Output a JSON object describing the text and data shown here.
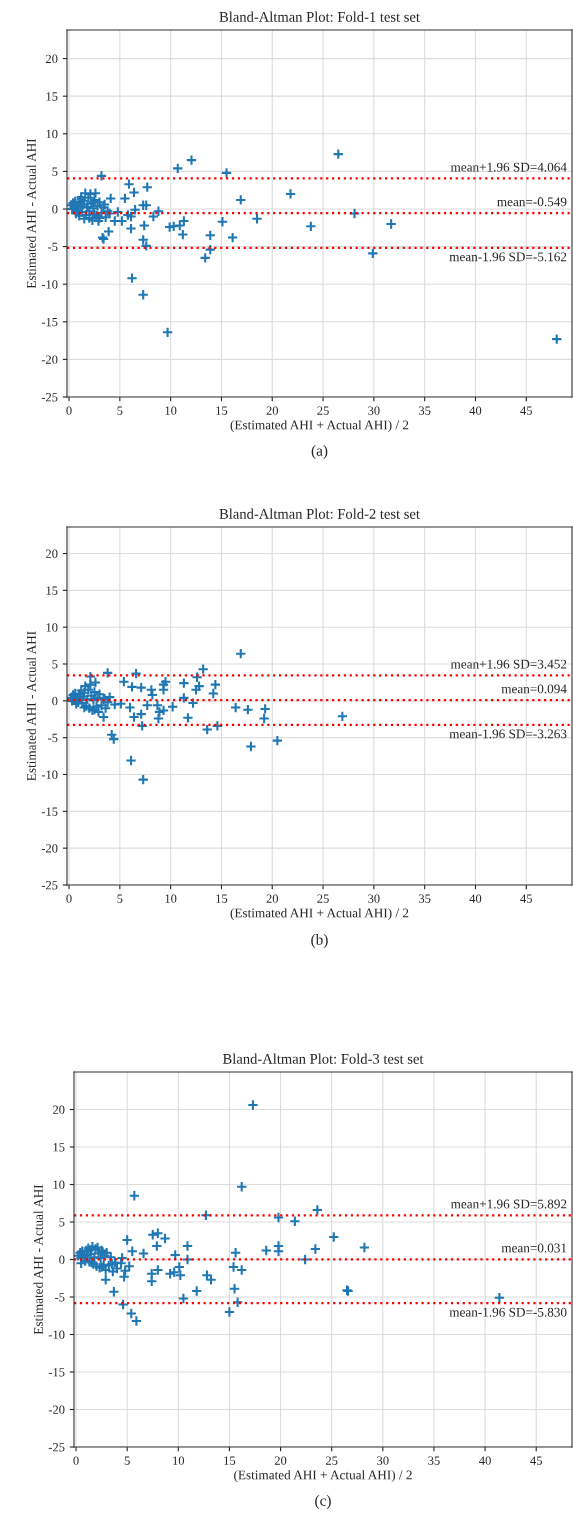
{
  "chart_data": [
    {
      "type": "scatter",
      "title": "Bland-Altman Plot: Fold-1 test set",
      "xlabel": "(Estimated AHI + Actual AHI) / 2",
      "ylabel": "Estimated AHI - Actual AHI",
      "marker": "cross",
      "grid": true,
      "xlim": [
        -0.2,
        49.5
      ],
      "ylim": [
        -25,
        23.8
      ],
      "xticks": [
        0,
        5,
        10,
        15,
        20,
        25,
        30,
        35,
        40,
        45
      ],
      "yticks": [
        -25,
        -20,
        -15,
        -10,
        -5,
        0,
        5,
        10,
        15,
        20
      ],
      "series": [
        {
          "color": "#1f77b4",
          "x": [
            0.2,
            0.4,
            0.5,
            0.6,
            0.8,
            0.9,
            1.0,
            1.1,
            1.2,
            1.3,
            1.4,
            1.5,
            1.6,
            1.7,
            1.8,
            1.9,
            2.0,
            2.1,
            2.2,
            2.3,
            2.4,
            2.5,
            2.6,
            2.7,
            2.8,
            2.9,
            3.0,
            3.2,
            3.4,
            3.6,
            3.8,
            4.0,
            0.3,
            0.7,
            1.0,
            1.5,
            2.0,
            2.5,
            3.0,
            3.5,
            1.2,
            1.8,
            2.4,
            3.19,
            5.9,
            6.4,
            7.7,
            5.5,
            4.1,
            10.7,
            12.05,
            15.5,
            16.9,
            21.8,
            26.5,
            23.8,
            28.1,
            31.7,
            29.9,
            48.0,
            18.5,
            15.1,
            16.1,
            13.9,
            13.9,
            13.4,
            11.3,
            11.2,
            9.9,
            10.3,
            10.9,
            9.7,
            6.2,
            7.3,
            7.3,
            7.6,
            3.3,
            3.4,
            3.9,
            6.1,
            7.4,
            8.3,
            7.6,
            7.3,
            6.5,
            4.5,
            5.2,
            6.1,
            4.8,
            5.8,
            8.8
          ],
          "values": [
            0.5,
            0.8,
            0.2,
            1.0,
            0.4,
            -0.2,
            0.9,
            0.3,
            1.3,
            -0.4,
            0.6,
            1.1,
            2.1,
            -0.8,
            0.2,
            1.5,
            -1.2,
            2.0,
            0.7,
            -1.5,
            0.1,
            1.2,
            2.1,
            -0.9,
            0.4,
            -1.6,
            0.9,
            -0.5,
            0.2,
            -1.1,
            -0.3,
            -0.6,
            0.0,
            -0.6,
            -0.9,
            -1.3,
            -0.3,
            -0.7,
            -1.2,
            0.6,
            1.6,
            0.3,
            0.9,
            4.4,
            3.3,
            2.2,
            2.9,
            1.4,
            1.4,
            5.4,
            6.5,
            4.8,
            1.2,
            2.0,
            7.3,
            -2.3,
            -0.6,
            -2.0,
            -5.9,
            -17.3,
            -1.3,
            -1.7,
            -3.8,
            -3.5,
            -5.4,
            -6.5,
            -1.6,
            -3.4,
            -2.4,
            -2.3,
            -2.2,
            -16.4,
            -9.2,
            -11.4,
            -4.1,
            -4.9,
            -3.8,
            -4.0,
            -3.0,
            -2.6,
            -2.2,
            -1.0,
            0.5,
            0.5,
            -0.1,
            -1.6,
            -1.6,
            -1.0,
            -0.4,
            -0.8,
            -0.3
          ]
        }
      ],
      "ref_lines": [
        {
          "axis": "y",
          "value": 4.064,
          "label": "mean+1.96 SD=4.064",
          "color": "#ff0000",
          "line_style": "dotted"
        },
        {
          "axis": "y",
          "value": -0.549,
          "label": "mean=-0.549",
          "color": "#ff0000",
          "line_style": "dotted"
        },
        {
          "axis": "y",
          "value": -5.162,
          "label": "mean-1.96 SD=-5.162",
          "color": "#ff0000",
          "line_style": "dotted"
        }
      ],
      "annotations": [
        "(a)"
      ]
    },
    {
      "type": "scatter",
      "title": "Bland-Altman Plot: Fold-2 test set",
      "xlabel": "(Estimated AHI + Actual AHI) / 2",
      "ylabel": "Estimated AHI - Actual AHI",
      "marker": "cross",
      "grid": true,
      "xlim": [
        -0.2,
        49.5
      ],
      "ylim": [
        -25,
        23.6
      ],
      "xticks": [
        0,
        5,
        10,
        15,
        20,
        25,
        30,
        35,
        40,
        45
      ],
      "yticks": [
        -25,
        -20,
        -15,
        -10,
        -5,
        0,
        5,
        10,
        15,
        20
      ],
      "series": [
        {
          "color": "#1f77b4",
          "x": [
            0.2,
            0.4,
            0.5,
            0.6,
            0.8,
            0.9,
            1.0,
            1.1,
            1.2,
            1.3,
            1.4,
            1.5,
            1.6,
            1.7,
            1.8,
            1.9,
            2.0,
            2.1,
            2.2,
            2.3,
            2.4,
            2.5,
            2.6,
            2.7,
            2.8,
            2.9,
            3.0,
            3.2,
            3.4,
            3.6,
            3.8,
            4.0,
            0.3,
            0.7,
            1.5,
            2.5,
            3.5,
            4.5,
            16.9,
            13.2,
            12.6,
            12.8,
            12.5,
            14.4,
            14.2,
            11.3,
            11.3,
            12.2,
            11.7,
            10.2,
            9.5,
            9.3,
            9.3,
            8.1,
            8.2,
            7.7,
            8.7,
            8.9,
            8.8,
            9.3,
            7.1,
            6.6,
            5.4,
            6.2,
            7.1,
            7.2,
            16.4,
            17.6,
            19.3,
            19.2,
            17.9,
            20.5,
            26.9,
            13.6,
            14.6,
            4.2,
            4.4,
            6.1,
            7.3,
            3.8,
            2.1,
            5.1,
            6.0,
            6.4,
            3.4
          ],
          "values": [
            0.4,
            0.8,
            0.1,
            1.0,
            0.3,
            -0.2,
            0.9,
            0.5,
            1.4,
            -0.3,
            0.6,
            1.1,
            2.0,
            -0.7,
            0.2,
            1.5,
            -1.0,
            2.2,
            0.7,
            -1.3,
            0.1,
            1.2,
            2.5,
            -0.8,
            0.4,
            -1.5,
            0.9,
            -0.6,
            0.2,
            -1.0,
            -0.2,
            0.5,
            0.0,
            -0.4,
            -0.9,
            -1.2,
            0.3,
            -0.5,
            6.4,
            4.3,
            3.2,
            2.0,
            1.5,
            2.2,
            1.0,
            2.4,
            0.4,
            -0.3,
            -2.3,
            -0.8,
            2.6,
            1.5,
            2.2,
            1.5,
            0.8,
            -0.6,
            -0.6,
            -1.5,
            -2.4,
            -1.3,
            1.8,
            3.7,
            2.6,
            1.9,
            -1.8,
            -3.4,
            -0.9,
            -1.2,
            -1.1,
            -2.4,
            -6.2,
            -5.4,
            -2.1,
            -3.9,
            -3.4,
            -4.6,
            -5.2,
            -8.1,
            -10.7,
            3.8,
            3.3,
            -0.4,
            -0.9,
            -2.2,
            -2.2
          ]
        }
      ],
      "ref_lines": [
        {
          "axis": "y",
          "value": 3.452,
          "label": "mean+1.96 SD=3.452",
          "color": "#ff0000",
          "line_style": "dotted"
        },
        {
          "axis": "y",
          "value": 0.094,
          "label": "mean=0.094",
          "color": "#ff0000",
          "line_style": "dotted"
        },
        {
          "axis": "y",
          "value": -3.263,
          "label": "mean-1.96 SD=-3.263",
          "color": "#ff0000",
          "line_style": "dotted"
        }
      ],
      "annotations": [
        "(b)"
      ]
    },
    {
      "type": "scatter",
      "title": "Bland-Altman Plot: Fold-3 test set",
      "xlabel": "(Estimated AHI + Actual AHI) / 2",
      "ylabel": "Estimated AHI - Actual AHI",
      "marker": "cross",
      "grid": true,
      "xlim": [
        -0.2,
        48.5
      ],
      "ylim": [
        -25,
        25
      ],
      "xticks": [
        0,
        5,
        10,
        15,
        20,
        25,
        30,
        35,
        40,
        45
      ],
      "yticks": [
        -25,
        -20,
        -15,
        -10,
        -5,
        0,
        5,
        10,
        15,
        20
      ],
      "series": [
        {
          "color": "#1f77b4",
          "x": [
            0.2,
            0.4,
            0.5,
            0.6,
            0.8,
            0.9,
            1.0,
            1.1,
            1.2,
            1.3,
            1.4,
            1.5,
            1.6,
            1.7,
            1.8,
            1.9,
            2.0,
            2.1,
            2.2,
            2.3,
            2.4,
            2.5,
            2.6,
            2.7,
            2.8,
            2.9,
            3.0,
            3.2,
            3.4,
            3.6,
            3.8,
            4.0,
            4.4,
            4.8,
            5.2,
            0.5,
            1.5,
            2.5,
            3.5,
            4.5,
            17.3,
            16.2,
            5.7,
            12.7,
            19.8,
            21.4,
            23.6,
            25.2,
            23.4,
            22.4,
            19.8,
            19.8,
            18.6,
            15.6,
            15.4,
            16.2,
            15.5,
            15.8,
            15.0,
            12.8,
            13.2,
            11.8,
            10.5,
            10.9,
            10.9,
            10.1,
            9.7,
            9.2,
            9.6,
            10.2,
            8.7,
            8.0,
            7.5,
            7.9,
            8.0,
            7.4,
            7.4,
            6.6,
            5.0,
            5.5,
            4.6,
            5.4,
            5.9,
            3.7,
            2.9,
            4.7,
            28.2,
            26.5,
            26.6,
            41.4
          ],
          "values": [
            0.5,
            0.9,
            0.2,
            1.1,
            0.4,
            -0.2,
            1.2,
            0.6,
            1.5,
            -0.3,
            0.7,
            1.3,
            1.7,
            -0.6,
            0.3,
            1.4,
            -0.9,
            1.6,
            0.8,
            -1.1,
            0.2,
            1.2,
            1.0,
            -0.7,
            0.5,
            -1.4,
            0.9,
            -0.8,
            0.3,
            -1.6,
            -0.4,
            -1.2,
            -0.5,
            -1.5,
            -0.9,
            -0.5,
            -0.4,
            -1.0,
            -0.6,
            0.2,
            20.6,
            9.7,
            8.5,
            5.9,
            5.6,
            5.1,
            6.6,
            3.0,
            1.4,
            0.0,
            1.8,
            1.1,
            1.2,
            0.9,
            -1.0,
            -1.4,
            -3.9,
            -5.7,
            -7.0,
            -2.1,
            -2.7,
            -4.2,
            -5.2,
            1.8,
            0.0,
            -1.0,
            0.6,
            -1.9,
            -1.7,
            -2.1,
            2.8,
            3.5,
            3.3,
            1.8,
            -1.4,
            -1.9,
            -2.9,
            0.8,
            2.6,
            1.1,
            -6.0,
            -7.2,
            -8.2,
            -4.3,
            -2.7,
            -2.3,
            1.6,
            -4.1,
            -4.2,
            -5.1
          ]
        }
      ],
      "ref_lines": [
        {
          "axis": "y",
          "value": 5.892,
          "label": "mean+1.96 SD=5.892",
          "color": "#ff0000",
          "line_style": "dotted"
        },
        {
          "axis": "y",
          "value": 0.031,
          "label": "mean=0.031",
          "color": "#ff0000",
          "line_style": "dotted"
        },
        {
          "axis": "y",
          "value": -5.83,
          "label": "mean-1.96 SD=-5.830",
          "color": "#ff0000",
          "line_style": "dotted"
        }
      ],
      "annotations": [
        "(c)"
      ]
    }
  ]
}
